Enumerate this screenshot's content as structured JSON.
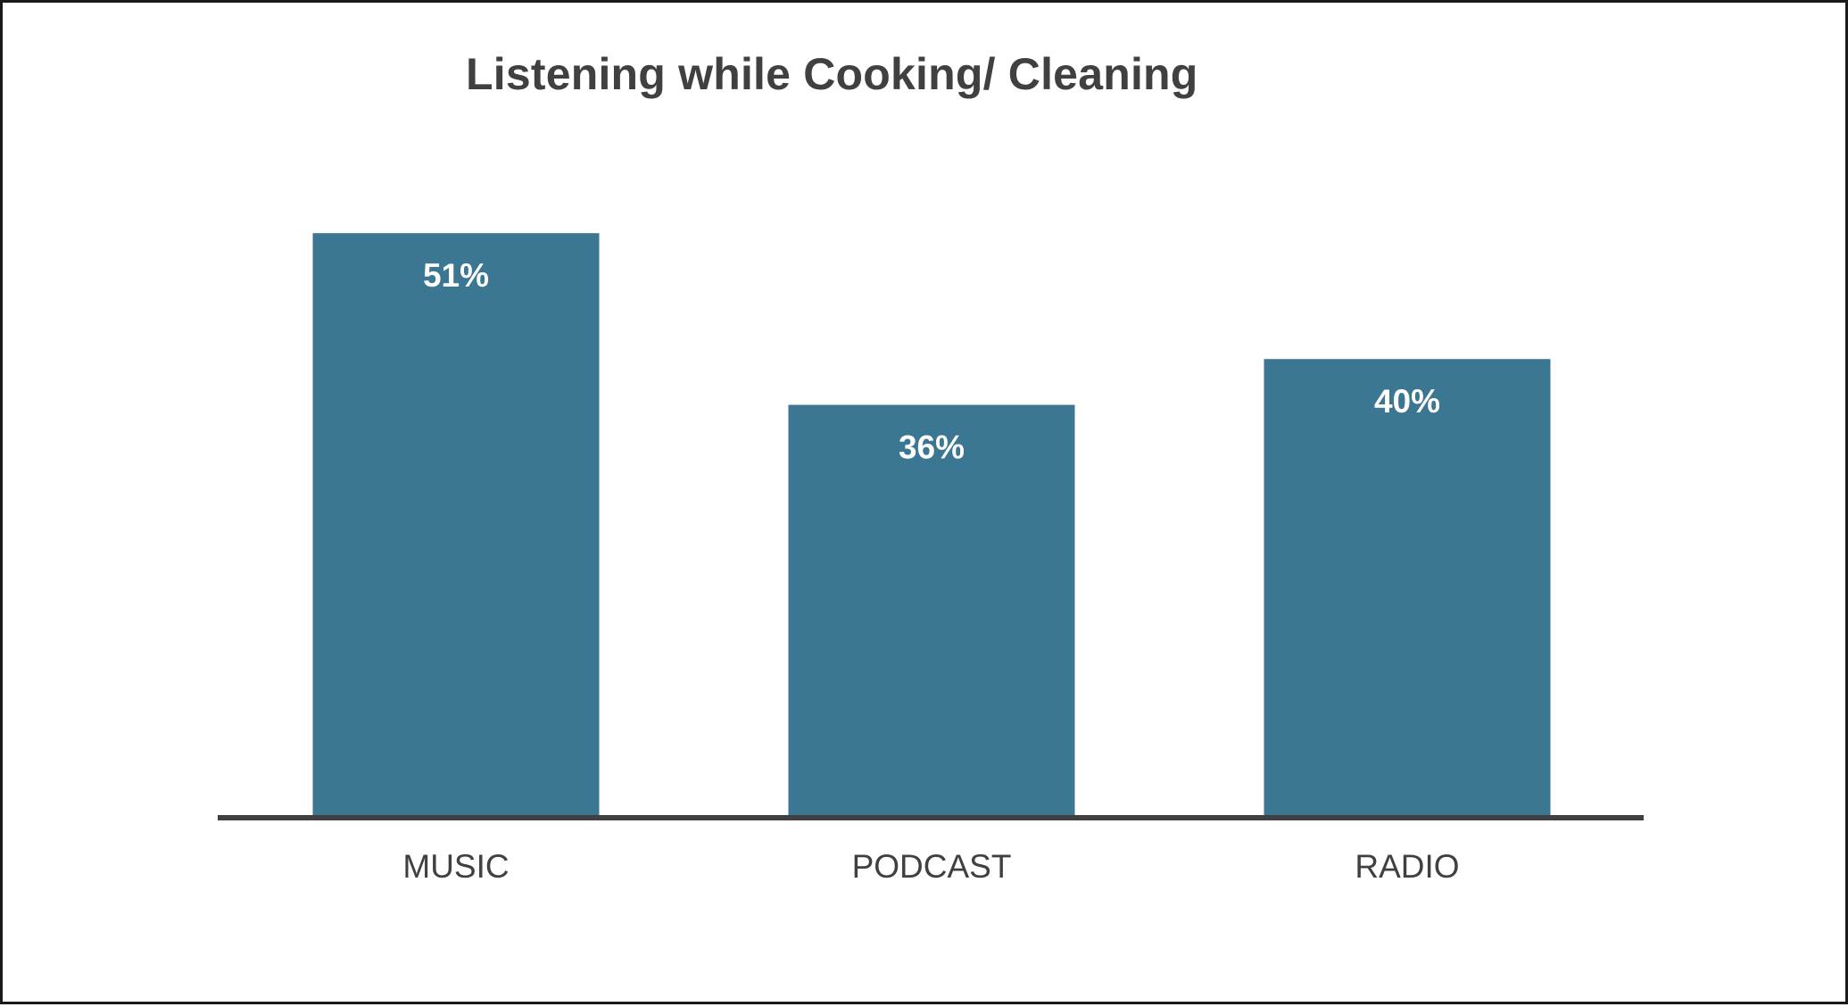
{
  "chart_data": {
    "type": "bar",
    "title": "Listening while Cooking/ Cleaning",
    "xlabel": "",
    "ylabel": "",
    "categories": [
      "MUSIC",
      "PODCAST",
      "RADIO"
    ],
    "values": [
      51,
      36,
      40
    ],
    "data_labels": [
      "51%",
      "36%",
      "40%"
    ],
    "unit": "%",
    "ylim": [
      0,
      60
    ],
    "grid": false,
    "legend": "none",
    "colors": {
      "bar": "#3b7693",
      "axis": "#404040",
      "text": "#404040",
      "data_label": "#ffffff"
    }
  }
}
